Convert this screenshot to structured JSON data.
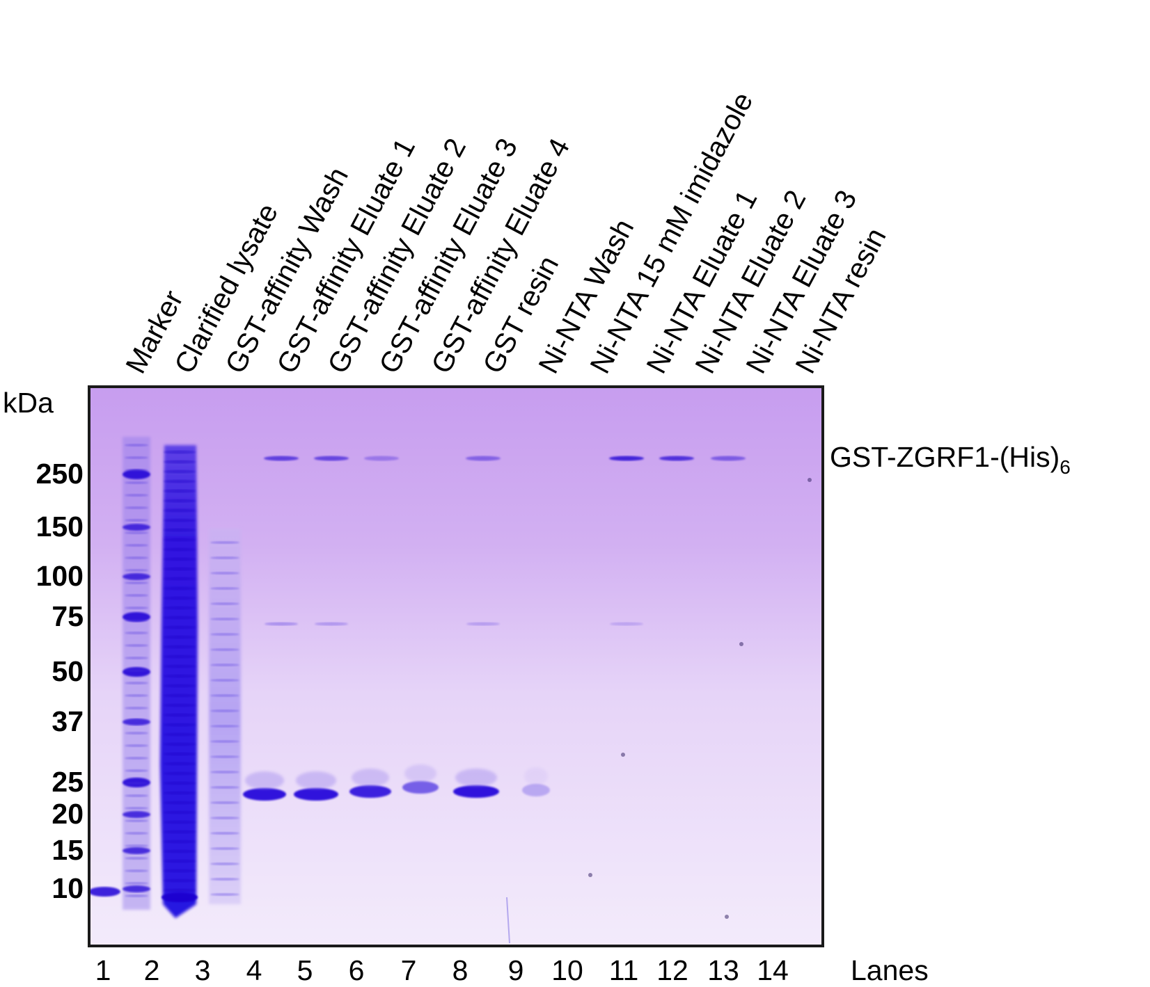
{
  "lane_headers": [
    "Marker",
    "Clarified lysate",
    "GST-affinity Wash",
    "GST-affinity Eluate 1",
    "GST-affinity Eluate 2",
    "GST-affinity Eluate 3",
    "GST-affinity Eluate 4",
    "GST resin",
    "Ni-NTA Wash",
    "Ni-NTA 15 mM imidazole",
    "Ni-NTA Eluate 1",
    "Ni-NTA Eluate 2",
    "Ni-NTA Eluate 3",
    "Ni-NTA resin"
  ],
  "mw_unit": "kDa",
  "mw_markers": [
    "250",
    "150",
    "100",
    "75",
    "50",
    "37",
    "25",
    "20",
    "15",
    "10"
  ],
  "lane_numbers": [
    "1",
    "2",
    "3",
    "4",
    "5",
    "6",
    "7",
    "8",
    "9",
    "10",
    "11",
    "12",
    "13",
    "14"
  ],
  "lanes_label": "Lanes",
  "protein_label": {
    "main": "GST-ZGRF1-(His)",
    "subscript": "6"
  },
  "colors": {
    "gel_background": "#c9a4ef",
    "stain": "#2a10d8",
    "frame": "#1a1a1a"
  }
}
